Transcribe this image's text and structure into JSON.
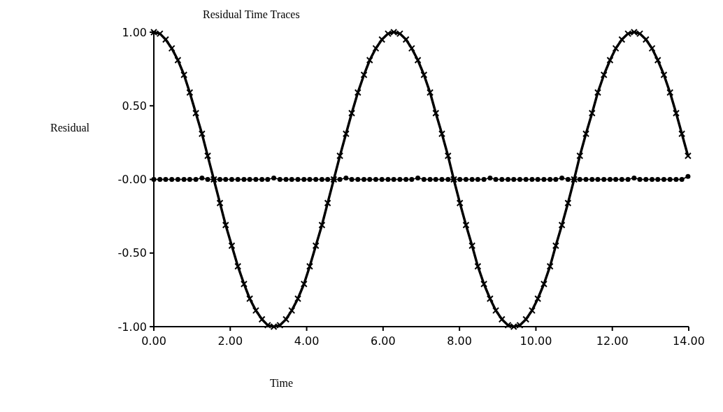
{
  "chart_data": {
    "type": "line",
    "title": "Residual Time Traces",
    "xlabel": "Time",
    "ylabel": "Residual",
    "x": [
      0,
      0.16,
      0.31,
      0.47,
      0.63,
      0.79,
      0.94,
      1.1,
      1.26,
      1.41,
      1.57,
      1.73,
      1.88,
      2.04,
      2.2,
      2.36,
      2.51,
      2.67,
      2.83,
      2.98,
      3.14,
      3.3,
      3.46,
      3.61,
      3.77,
      3.93,
      4.08,
      4.24,
      4.4,
      4.55,
      4.71,
      4.87,
      5.03,
      5.18,
      5.34,
      5.5,
      5.65,
      5.81,
      5.97,
      6.13,
      6.28,
      6.44,
      6.6,
      6.75,
      6.91,
      7.07,
      7.23,
      7.38,
      7.54,
      7.7,
      7.85,
      8.01,
      8.17,
      8.33,
      8.48,
      8.64,
      8.8,
      8.95,
      9.11,
      9.27,
      9.42,
      9.58,
      9.74,
      9.9,
      10.05,
      10.21,
      10.37,
      10.52,
      10.68,
      10.84,
      11.0,
      11.15,
      11.31,
      11.47,
      11.62,
      11.78,
      11.94,
      12.09,
      12.25,
      12.41,
      12.57,
      12.72,
      12.88,
      13.04,
      13.19,
      13.35,
      13.51,
      13.67,
      13.82,
      13.98
    ],
    "series": [
      {
        "color": "#000000",
        "marker": "cross",
        "values": [
          1,
          0.99,
          0.95,
          0.89,
          0.81,
          0.71,
          0.59,
          0.45,
          0.31,
          0.16,
          0,
          -0.16,
          -0.31,
          -0.45,
          -0.59,
          -0.71,
          -0.81,
          -0.89,
          -0.95,
          -0.99,
          -1,
          -0.99,
          -0.95,
          -0.89,
          -0.81,
          -0.71,
          -0.59,
          -0.45,
          -0.31,
          -0.16,
          0,
          0.16,
          0.31,
          0.45,
          0.59,
          0.71,
          0.81,
          0.89,
          0.95,
          0.99,
          1,
          0.99,
          0.95,
          0.89,
          0.81,
          0.71,
          0.59,
          0.45,
          0.31,
          0.16,
          0,
          -0.16,
          -0.31,
          -0.45,
          -0.59,
          -0.71,
          -0.81,
          -0.89,
          -0.95,
          -0.99,
          -1,
          -0.99,
          -0.95,
          -0.89,
          -0.81,
          -0.71,
          -0.59,
          -0.45,
          -0.31,
          -0.16,
          0,
          0.16,
          0.31,
          0.45,
          0.59,
          0.71,
          0.81,
          0.89,
          0.95,
          0.99,
          1,
          0.99,
          0.95,
          0.89,
          0.81,
          0.71,
          0.59,
          0.45,
          0.31,
          0.16
        ]
      },
      {
        "color": "#000000",
        "marker": "circle",
        "values": [
          0,
          0,
          0,
          0,
          0,
          0,
          0,
          0,
          0.01,
          0,
          0,
          0,
          0,
          0,
          0,
          0,
          0,
          0,
          0,
          0,
          0.01,
          0,
          0,
          0,
          0,
          0,
          0,
          0,
          0,
          0,
          0,
          0,
          0.01,
          0,
          0,
          0,
          0,
          0,
          0,
          0,
          0,
          0,
          0,
          0,
          0.01,
          0,
          0,
          0,
          0,
          0,
          0,
          0,
          0,
          0,
          0,
          0,
          0.01,
          0,
          0,
          0,
          0,
          0,
          0,
          0,
          0,
          0,
          0,
          0,
          0.01,
          0,
          0,
          0,
          0,
          0,
          0,
          0,
          0,
          0,
          0,
          0,
          0.01,
          0,
          0,
          0,
          0,
          0,
          0,
          0,
          0,
          0.02
        ]
      }
    ],
    "xlim": [
      0,
      14
    ],
    "xticks": [
      {
        "value": 0,
        "label": "0.00"
      },
      {
        "value": 2,
        "label": "2.00"
      },
      {
        "value": 4,
        "label": "4.00"
      },
      {
        "value": 6,
        "label": "6.00"
      },
      {
        "value": 8,
        "label": "8.00"
      },
      {
        "value": 10,
        "label": "10.00"
      },
      {
        "value": 12,
        "label": "12.00"
      },
      {
        "value": 14,
        "label": "14.00"
      }
    ],
    "ylim": [
      -1,
      1
    ],
    "yticks": [
      {
        "value": 1,
        "label": "1.00"
      },
      {
        "value": 0.5,
        "label": "0.50"
      },
      {
        "value": 0,
        "label": "-0.00"
      },
      {
        "value": -0.5,
        "label": "-0.50"
      },
      {
        "value": -1,
        "label": "-1.00"
      }
    ]
  }
}
